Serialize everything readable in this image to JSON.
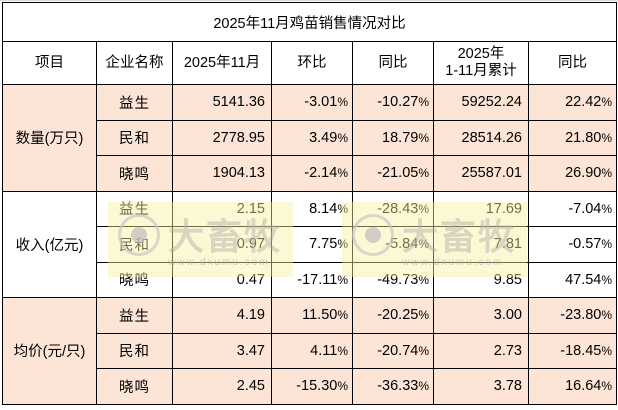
{
  "title": "2025年11月鸡苗销售情况对比",
  "headers": {
    "item": "项目",
    "company": "企业名称",
    "month": "2025年11月",
    "mom": "环比",
    "yoy": "同比",
    "ytd_line1": "2025年",
    "ytd_line2": "1-11月累计",
    "ytd_yoy": "同比"
  },
  "pct_suffix": "%",
  "sections": [
    {
      "category": "数量(万只)",
      "rows": [
        {
          "company": "益生",
          "month": "5141.36",
          "mom": "-3.01",
          "yoy": "-10.27",
          "ytd": "59252.24",
          "ytd_yoy": "22.42"
        },
        {
          "company": "民和",
          "month": "2778.95",
          "mom": "3.49",
          "yoy": "18.79",
          "ytd": "28514.26",
          "ytd_yoy": "21.80"
        },
        {
          "company": "晓鸣",
          "month": "1904.13",
          "mom": "-2.14",
          "yoy": "-21.05",
          "ytd": "25587.01",
          "ytd_yoy": "26.90"
        }
      ]
    },
    {
      "category": "收入(亿元)",
      "rows": [
        {
          "company": "益生",
          "month": "2.15",
          "mom": "8.14",
          "yoy": "-28.43",
          "ytd": "17.69",
          "ytd_yoy": "-7.04"
        },
        {
          "company": "民和",
          "month": "0.97",
          "mom": "7.75",
          "yoy": "-5.84",
          "ytd": "7.81",
          "ytd_yoy": "-0.57"
        },
        {
          "company": "晓鸣",
          "month": "0.47",
          "mom": "-17.11",
          "yoy": "-49.73",
          "ytd": "9.85",
          "ytd_yoy": "47.54"
        }
      ]
    },
    {
      "category": "均价(元/只)",
      "rows": [
        {
          "company": "益生",
          "month": "4.19",
          "mom": "11.50",
          "yoy": "-20.25",
          "ytd": "3.00",
          "ytd_yoy": "-23.80"
        },
        {
          "company": "民和",
          "month": "3.47",
          "mom": "4.11",
          "yoy": "-20.74",
          "ytd": "2.73",
          "ytd_yoy": "-18.45"
        },
        {
          "company": "晓鸣",
          "month": "2.45",
          "mom": "-15.30",
          "yoy": "-36.33",
          "ytd": "3.78",
          "ytd_yoy": "16.64"
        }
      ]
    }
  ],
  "watermark": {
    "text": "大畜牧",
    "url": "www.dxumu.com"
  },
  "colors": {
    "title": "#1f7bc4",
    "positive": "#ff0000",
    "negative": "#00b050",
    "section_fill": "#fce4d6"
  }
}
